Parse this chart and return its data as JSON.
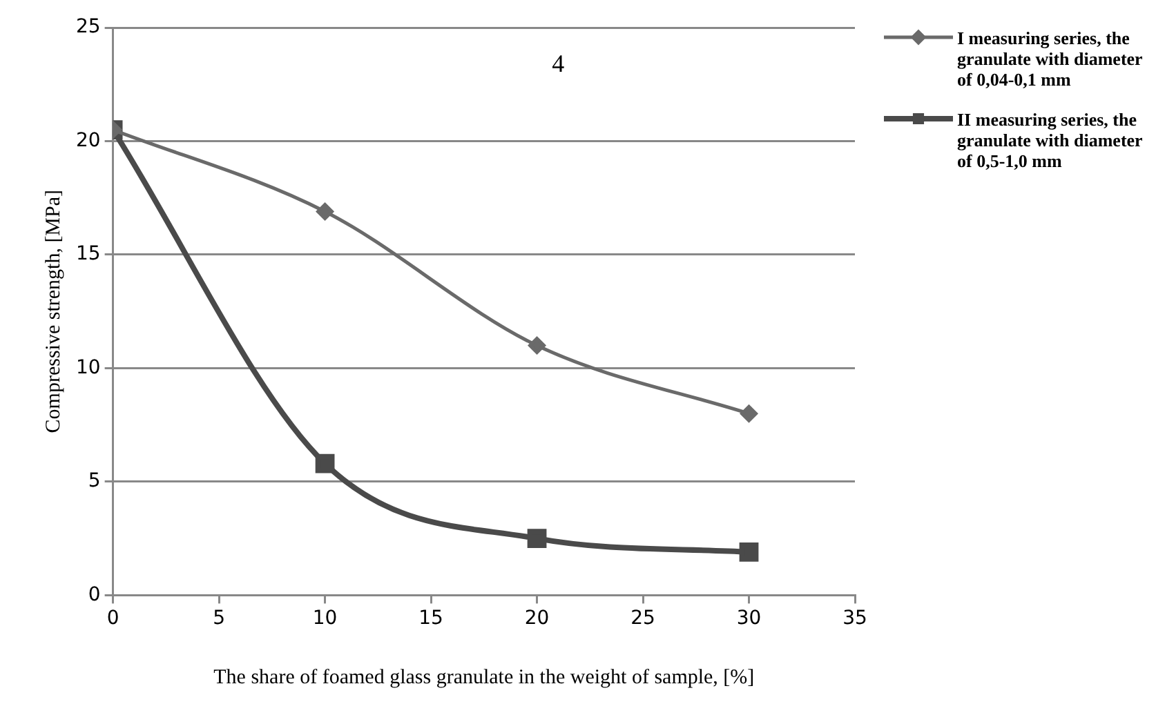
{
  "chart_data": {
    "type": "line",
    "xlabel": "The share of foamed glass granulate in the weight of sample, [%]",
    "ylabel": "Compressive strength, [MPa]",
    "annotations": [
      "4"
    ],
    "x": [
      0,
      10,
      20,
      30
    ],
    "series": [
      {
        "name": "I measuring series, the granulate with diameter of 0,04-0,1 mm",
        "color": "#6a6a6a",
        "values": [
          20.5,
          16.9,
          11.0,
          8.0
        ],
        "marker": "diamond"
      },
      {
        "name": "II measuring series, the granulate with diameter of 0,5-1,0 mm",
        "color": "#4a4a4a",
        "values": [
          20.5,
          5.8,
          2.5,
          1.9
        ],
        "marker": "square"
      }
    ],
    "xlim": [
      0,
      35
    ],
    "xticks": [
      0,
      5,
      10,
      15,
      20,
      25,
      30,
      35
    ],
    "ylim": [
      0,
      25
    ],
    "yticks": [
      0,
      5,
      10,
      15,
      20,
      25
    ],
    "grid": "y",
    "legend": "right"
  }
}
